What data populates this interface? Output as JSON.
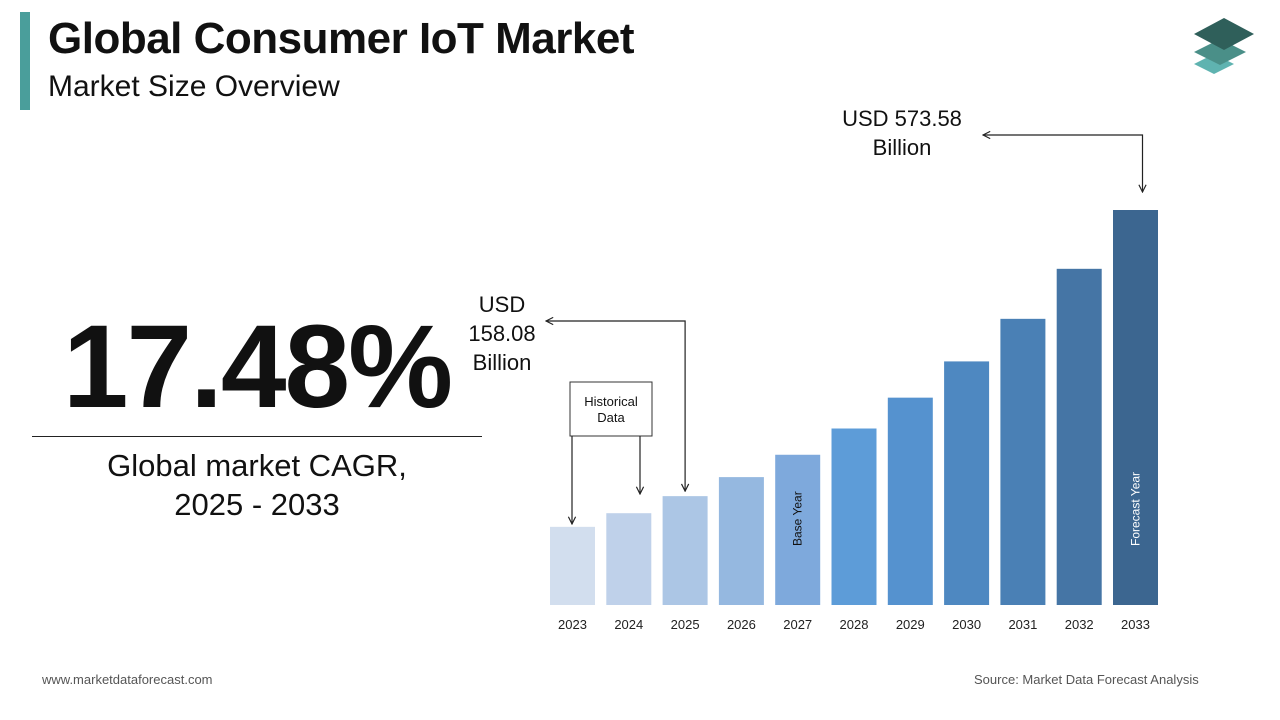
{
  "header": {
    "title": "Global Consumer IoT Market",
    "subtitle": "Market Size Overview"
  },
  "highlight": {
    "cagr_value": "17.48%",
    "caption_line1": "Global market CAGR,",
    "caption_line2": "2025 - 2033"
  },
  "colors": {
    "accent": "#4a9e9b",
    "logo_top": "#2f5f5a",
    "logo_mid": "#4a8f88",
    "logo_bottom": "#5fb3b0"
  },
  "chart_data": {
    "type": "bar",
    "categories": [
      "2023",
      "2024",
      "2025",
      "2026",
      "2027",
      "2028",
      "2029",
      "2030",
      "2031",
      "2032",
      "2033"
    ],
    "values": [
      113.48,
      133.3,
      158.08,
      185.71,
      218.16,
      256.29,
      301.09,
      353.72,
      415.54,
      488.17,
      573.58
    ],
    "bar_colors": [
      "#d2deee",
      "#bfd1ea",
      "#acc6e5",
      "#95b8e0",
      "#7ea9dc",
      "#5d9cd8",
      "#5592cf",
      "#4e88c1",
      "#4a80b5",
      "#4575a5",
      "#3c6690"
    ],
    "ylim": [
      0,
      600
    ],
    "bar_labels": {
      "2027": "Base Year",
      "2033": "Forecast Year"
    },
    "annotations": {
      "start": {
        "line1": "USD",
        "line2": "158.08",
        "line3": "Billion",
        "category": "2025"
      },
      "end": {
        "line1": "USD 573.58",
        "line2": "Billion",
        "category": "2033"
      },
      "historical": {
        "line1": "Historical",
        "line2": "Data",
        "categories": [
          "2023",
          "2024"
        ]
      }
    }
  },
  "footer": {
    "website": "www.marketdataforecast.com",
    "source": "Source: Market Data Forecast Analysis"
  }
}
